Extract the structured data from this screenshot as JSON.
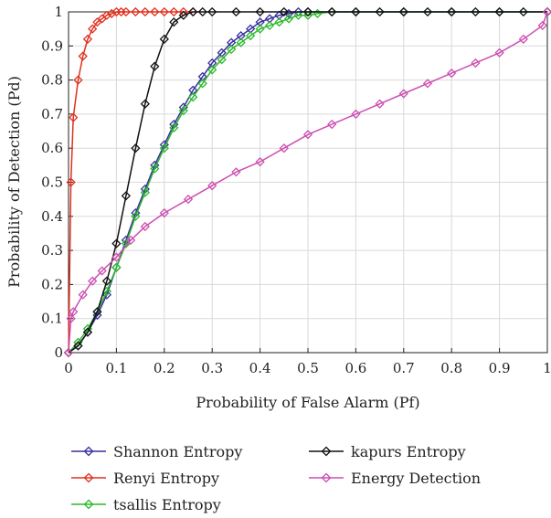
{
  "chart_data": {
    "type": "line",
    "title": "",
    "xlabel": "Probability of False Alarm (Pf)",
    "ylabel": "Probability of Detection (Pd)",
    "xlim": [
      0,
      1
    ],
    "ylim": [
      0,
      1
    ],
    "x_ticks": [
      "0",
      "0.1",
      "0.2",
      "0.3",
      "0.4",
      "0.5",
      "0.6",
      "0.7",
      "0.8",
      "0.9",
      "1"
    ],
    "y_ticks": [
      "0",
      "0.1",
      "0.2",
      "0.3",
      "0.4",
      "0.5",
      "0.6",
      "0.7",
      "0.8",
      "0.9",
      "1"
    ],
    "grid": true,
    "legend_position": "bottom",
    "series": [
      {
        "name": "Shannon Entropy",
        "color": "#3a2fa0",
        "marker": "diamond",
        "x": [
          0,
          0.02,
          0.04,
          0.06,
          0.08,
          0.1,
          0.12,
          0.14,
          0.16,
          0.18,
          0.2,
          0.22,
          0.24,
          0.26,
          0.28,
          0.3,
          0.32,
          0.34,
          0.36,
          0.38,
          0.4,
          0.42,
          0.44,
          0.46,
          0.48,
          0.5,
          0.55,
          0.6,
          0.7,
          0.8,
          0.9,
          1.0
        ],
        "y": [
          0,
          0.02,
          0.06,
          0.11,
          0.17,
          0.25,
          0.33,
          0.41,
          0.48,
          0.55,
          0.61,
          0.67,
          0.72,
          0.77,
          0.81,
          0.85,
          0.88,
          0.91,
          0.93,
          0.95,
          0.97,
          0.98,
          0.99,
          0.995,
          1,
          1,
          1,
          1,
          1,
          1,
          1,
          1
        ]
      },
      {
        "name": "Renyi Entropy",
        "color": "#e0301e",
        "marker": "diamond",
        "x": [
          0,
          0.005,
          0.01,
          0.02,
          0.03,
          0.04,
          0.05,
          0.06,
          0.07,
          0.08,
          0.09,
          0.1,
          0.11,
          0.12,
          0.14,
          0.16,
          0.18,
          0.2,
          0.22,
          0.24,
          0.26
        ],
        "y": [
          0,
          0.5,
          0.69,
          0.8,
          0.87,
          0.92,
          0.95,
          0.97,
          0.98,
          0.99,
          0.995,
          1,
          1,
          1,
          1,
          1,
          1,
          1,
          1,
          1,
          1
        ]
      },
      {
        "name": "tsallis Entropy",
        "color": "#2db82d",
        "marker": "diamond",
        "x": [
          0,
          0.02,
          0.04,
          0.06,
          0.08,
          0.1,
          0.12,
          0.14,
          0.16,
          0.18,
          0.2,
          0.22,
          0.24,
          0.26,
          0.28,
          0.3,
          0.32,
          0.34,
          0.36,
          0.38,
          0.4,
          0.42,
          0.44,
          0.46,
          0.48,
          0.5,
          0.52,
          0.55,
          0.6,
          0.7,
          0.8,
          0.9,
          1.0
        ],
        "y": [
          0,
          0.03,
          0.07,
          0.12,
          0.18,
          0.25,
          0.32,
          0.4,
          0.47,
          0.54,
          0.6,
          0.66,
          0.71,
          0.75,
          0.79,
          0.83,
          0.86,
          0.89,
          0.91,
          0.93,
          0.95,
          0.96,
          0.97,
          0.98,
          0.99,
          0.99,
          0.995,
          1,
          1,
          1,
          1,
          1,
          1
        ]
      },
      {
        "name": "kapurs Entropy",
        "color": "#111111",
        "marker": "diamond",
        "x": [
          0,
          0.02,
          0.04,
          0.06,
          0.08,
          0.1,
          0.12,
          0.14,
          0.16,
          0.18,
          0.2,
          0.22,
          0.24,
          0.26,
          0.28,
          0.3,
          0.35,
          0.4,
          0.45,
          0.5,
          0.55,
          0.6,
          0.65,
          0.7,
          0.75,
          0.8,
          0.85,
          0.9,
          0.95,
          1.0
        ],
        "y": [
          0,
          0.02,
          0.06,
          0.12,
          0.21,
          0.32,
          0.46,
          0.6,
          0.73,
          0.84,
          0.92,
          0.97,
          0.99,
          1,
          1,
          1,
          1,
          1,
          1,
          1,
          1,
          1,
          1,
          1,
          1,
          1,
          1,
          1,
          1,
          1
        ]
      },
      {
        "name": "Energy Detection",
        "color": "#cc4fb0",
        "marker": "diamond",
        "x": [
          0,
          0.005,
          0.01,
          0.03,
          0.05,
          0.07,
          0.1,
          0.13,
          0.16,
          0.2,
          0.25,
          0.3,
          0.35,
          0.4,
          0.45,
          0.5,
          0.55,
          0.6,
          0.65,
          0.7,
          0.75,
          0.8,
          0.85,
          0.9,
          0.95,
          0.99,
          1.0
        ],
        "y": [
          0,
          0.1,
          0.12,
          0.17,
          0.21,
          0.24,
          0.28,
          0.33,
          0.37,
          0.41,
          0.45,
          0.49,
          0.53,
          0.56,
          0.6,
          0.64,
          0.67,
          0.7,
          0.73,
          0.76,
          0.79,
          0.82,
          0.85,
          0.88,
          0.92,
          0.96,
          1
        ]
      }
    ]
  }
}
